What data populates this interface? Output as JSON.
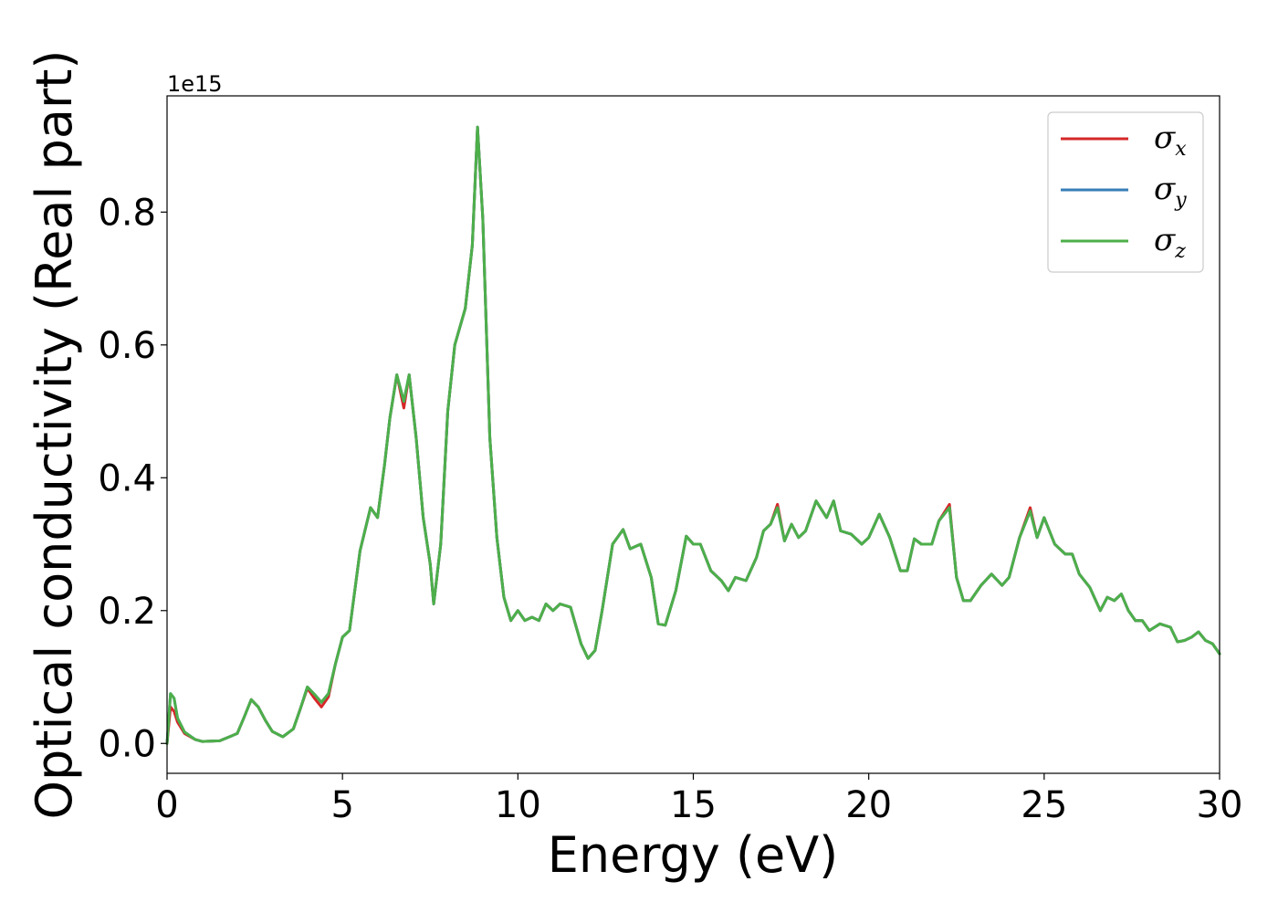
{
  "chart_data": {
    "type": "line",
    "xlabel": "Energy (eV)",
    "ylabel": "Optical conductivity (Real part)",
    "y_offset_label": "1e15",
    "xlim": [
      0,
      30
    ],
    "ylim": [
      -0.045,
      0.975
    ],
    "xticks": [
      0,
      5,
      10,
      15,
      20,
      25,
      30
    ],
    "xtick_labels": [
      "0",
      "5",
      "10",
      "15",
      "20",
      "25",
      "30"
    ],
    "yticks": [
      0.0,
      0.2,
      0.4,
      0.6,
      0.8
    ],
    "ytick_labels": [
      "0.0",
      "0.2",
      "0.4",
      "0.6",
      "0.8"
    ],
    "grid": false,
    "legend_position": "top-right",
    "x": [
      0,
      0.1,
      0.2,
      0.3,
      0.5,
      0.8,
      1.0,
      1.5,
      2.0,
      2.2,
      2.4,
      2.6,
      2.8,
      3.0,
      3.3,
      3.6,
      3.8,
      4.0,
      4.2,
      4.4,
      4.6,
      4.8,
      5.0,
      5.2,
      5.5,
      5.8,
      6.0,
      6.2,
      6.35,
      6.55,
      6.75,
      6.9,
      7.1,
      7.3,
      7.5,
      7.6,
      7.8,
      8.0,
      8.2,
      8.5,
      8.7,
      8.85,
      9.0,
      9.2,
      9.4,
      9.6,
      9.8,
      10.0,
      10.2,
      10.4,
      10.6,
      10.8,
      11.0,
      11.2,
      11.5,
      11.8,
      12.0,
      12.2,
      12.4,
      12.7,
      13.0,
      13.2,
      13.5,
      13.8,
      14.0,
      14.2,
      14.5,
      14.8,
      15.0,
      15.2,
      15.5,
      15.8,
      16.0,
      16.2,
      16.5,
      16.8,
      17.0,
      17.2,
      17.4,
      17.6,
      17.8,
      18.0,
      18.2,
      18.5,
      18.8,
      19.0,
      19.2,
      19.5,
      19.8,
      20.0,
      20.3,
      20.6,
      20.9,
      21.1,
      21.3,
      21.5,
      21.8,
      22.0,
      22.3,
      22.5,
      22.7,
      22.9,
      23.2,
      23.5,
      23.8,
      24.0,
      24.3,
      24.6,
      24.8,
      25.0,
      25.3,
      25.6,
      25.8,
      26.0,
      26.3,
      26.6,
      26.8,
      27.0,
      27.2,
      27.4,
      27.6,
      27.8,
      28.0,
      28.3,
      28.6,
      28.8,
      29.0,
      29.2,
      29.4,
      29.6,
      29.8,
      30.0
    ],
    "series": [
      {
        "name": "σx",
        "label_base": "σ",
        "label_sub": "x",
        "color": "#d62728",
        "values": [
          0.0,
          0.055,
          0.048,
          0.032,
          0.015,
          0.006,
          0.003,
          0.004,
          0.015,
          0.04,
          0.066,
          0.055,
          0.035,
          0.018,
          0.01,
          0.022,
          0.052,
          0.083,
          0.068,
          0.055,
          0.07,
          0.12,
          0.16,
          0.17,
          0.29,
          0.355,
          0.34,
          0.42,
          0.49,
          0.555,
          0.505,
          0.555,
          0.46,
          0.34,
          0.27,
          0.21,
          0.3,
          0.5,
          0.6,
          0.655,
          0.75,
          0.928,
          0.79,
          0.46,
          0.31,
          0.22,
          0.185,
          0.2,
          0.185,
          0.19,
          0.185,
          0.21,
          0.2,
          0.21,
          0.205,
          0.15,
          0.128,
          0.14,
          0.2,
          0.3,
          0.322,
          0.293,
          0.3,
          0.25,
          0.18,
          0.178,
          0.23,
          0.312,
          0.3,
          0.3,
          0.26,
          0.245,
          0.23,
          0.25,
          0.245,
          0.28,
          0.32,
          0.33,
          0.36,
          0.305,
          0.33,
          0.31,
          0.32,
          0.365,
          0.34,
          0.365,
          0.32,
          0.315,
          0.3,
          0.31,
          0.345,
          0.31,
          0.26,
          0.26,
          0.308,
          0.3,
          0.3,
          0.335,
          0.36,
          0.25,
          0.215,
          0.215,
          0.238,
          0.255,
          0.238,
          0.25,
          0.31,
          0.355,
          0.31,
          0.34,
          0.3,
          0.285,
          0.285,
          0.255,
          0.235,
          0.2,
          0.22,
          0.215,
          0.225,
          0.2,
          0.185,
          0.185,
          0.17,
          0.18,
          0.175,
          0.153,
          0.155,
          0.16,
          0.168,
          0.155,
          0.15,
          0.135
        ]
      },
      {
        "name": "σy",
        "label_base": "σ",
        "label_sub": "y",
        "color": "#377eb8",
        "values": [
          0.0,
          0.075,
          0.068,
          0.038,
          0.017,
          0.006,
          0.003,
          0.004,
          0.015,
          0.04,
          0.066,
          0.055,
          0.035,
          0.018,
          0.01,
          0.022,
          0.052,
          0.085,
          0.074,
          0.062,
          0.075,
          0.12,
          0.16,
          0.17,
          0.29,
          0.355,
          0.34,
          0.42,
          0.49,
          0.555,
          0.515,
          0.555,
          0.46,
          0.34,
          0.27,
          0.21,
          0.3,
          0.5,
          0.6,
          0.655,
          0.75,
          0.928,
          0.79,
          0.46,
          0.31,
          0.22,
          0.185,
          0.2,
          0.185,
          0.19,
          0.185,
          0.21,
          0.2,
          0.21,
          0.205,
          0.15,
          0.128,
          0.14,
          0.2,
          0.3,
          0.322,
          0.293,
          0.3,
          0.25,
          0.18,
          0.178,
          0.23,
          0.312,
          0.3,
          0.3,
          0.26,
          0.245,
          0.23,
          0.25,
          0.245,
          0.28,
          0.32,
          0.33,
          0.355,
          0.305,
          0.33,
          0.31,
          0.32,
          0.365,
          0.34,
          0.365,
          0.32,
          0.315,
          0.3,
          0.31,
          0.345,
          0.31,
          0.26,
          0.26,
          0.308,
          0.3,
          0.3,
          0.335,
          0.355,
          0.25,
          0.215,
          0.215,
          0.238,
          0.255,
          0.238,
          0.25,
          0.31,
          0.35,
          0.31,
          0.34,
          0.3,
          0.285,
          0.285,
          0.255,
          0.235,
          0.2,
          0.22,
          0.215,
          0.225,
          0.2,
          0.185,
          0.185,
          0.17,
          0.18,
          0.175,
          0.153,
          0.155,
          0.16,
          0.168,
          0.155,
          0.15,
          0.135
        ]
      },
      {
        "name": "σz",
        "label_base": "σ",
        "label_sub": "z",
        "color": "#4daf4a",
        "values": [
          0.0,
          0.075,
          0.068,
          0.038,
          0.017,
          0.006,
          0.003,
          0.004,
          0.015,
          0.04,
          0.066,
          0.055,
          0.035,
          0.018,
          0.01,
          0.022,
          0.052,
          0.085,
          0.074,
          0.062,
          0.075,
          0.12,
          0.16,
          0.17,
          0.29,
          0.355,
          0.34,
          0.42,
          0.49,
          0.555,
          0.515,
          0.555,
          0.46,
          0.34,
          0.27,
          0.21,
          0.3,
          0.5,
          0.6,
          0.655,
          0.75,
          0.928,
          0.79,
          0.46,
          0.31,
          0.22,
          0.185,
          0.2,
          0.185,
          0.19,
          0.185,
          0.21,
          0.2,
          0.21,
          0.205,
          0.15,
          0.128,
          0.14,
          0.2,
          0.3,
          0.322,
          0.293,
          0.3,
          0.25,
          0.18,
          0.178,
          0.23,
          0.312,
          0.3,
          0.3,
          0.26,
          0.245,
          0.23,
          0.25,
          0.245,
          0.28,
          0.32,
          0.33,
          0.355,
          0.305,
          0.33,
          0.31,
          0.32,
          0.365,
          0.34,
          0.365,
          0.32,
          0.315,
          0.3,
          0.31,
          0.345,
          0.31,
          0.26,
          0.26,
          0.308,
          0.3,
          0.3,
          0.335,
          0.355,
          0.25,
          0.215,
          0.215,
          0.238,
          0.255,
          0.238,
          0.25,
          0.31,
          0.35,
          0.31,
          0.34,
          0.3,
          0.285,
          0.285,
          0.255,
          0.235,
          0.2,
          0.22,
          0.215,
          0.225,
          0.2,
          0.185,
          0.185,
          0.17,
          0.18,
          0.175,
          0.153,
          0.155,
          0.16,
          0.168,
          0.155,
          0.15,
          0.135
        ]
      }
    ]
  }
}
